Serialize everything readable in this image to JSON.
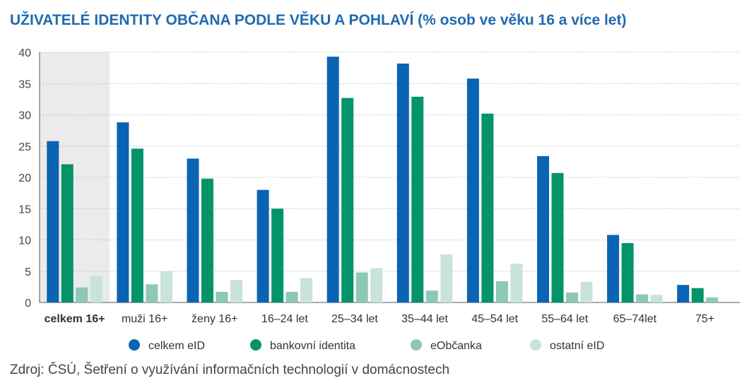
{
  "title": "UŽIVATELÉ IDENTITY OBČANA PODLE VĚKU A POHLAVÍ",
  "title_suffix": "(% osob ve věku 16 a více let)",
  "source": "Zdroj: ČSÚ, Šetření o využívání informačních technologií v domácnostech",
  "colors": {
    "title": "#1f6ab0",
    "grid": "#c8c8c8",
    "highlight_bg": "#ebebeb"
  },
  "chart_data": {
    "type": "bar",
    "title": "UŽIVATELÉ IDENTITY OBČANA PODLE VĚKU A POHLAVÍ (% osob ve věku 16 a více let)",
    "xlabel": "",
    "ylabel": "",
    "ylim": [
      0,
      40
    ],
    "yticks": [
      0,
      5,
      10,
      15,
      20,
      25,
      30,
      35,
      40
    ],
    "grid": true,
    "legend_position": "bottom",
    "highlighted_category": "celkem 16+",
    "categories": [
      "celkem 16+",
      "muži 16+",
      "ženy 16+",
      "16–24 let",
      "25–34 let",
      "35–44 let",
      "45–54 let",
      "55–64 let",
      "65–74let",
      "75+"
    ],
    "series": [
      {
        "name": "celkem eID",
        "color": "#0b63b3",
        "values": [
          25.8,
          28.8,
          23.0,
          18.0,
          39.3,
          38.2,
          35.8,
          23.4,
          10.8,
          2.8
        ]
      },
      {
        "name": "bankovní identita",
        "color": "#05936a",
        "values": [
          22.1,
          24.6,
          19.8,
          15.0,
          32.7,
          32.9,
          30.2,
          20.7,
          9.5,
          2.3
        ]
      },
      {
        "name": "eObčanka",
        "color": "#8cc8b3",
        "values": [
          2.4,
          2.9,
          1.7,
          1.7,
          4.8,
          1.9,
          3.4,
          1.6,
          1.3,
          0.8
        ]
      },
      {
        "name": "ostatní eID",
        "color": "#c8e4d9",
        "values": [
          4.3,
          5.0,
          3.6,
          3.9,
          5.5,
          7.7,
          6.2,
          3.3,
          1.2,
          0.0
        ]
      }
    ]
  }
}
